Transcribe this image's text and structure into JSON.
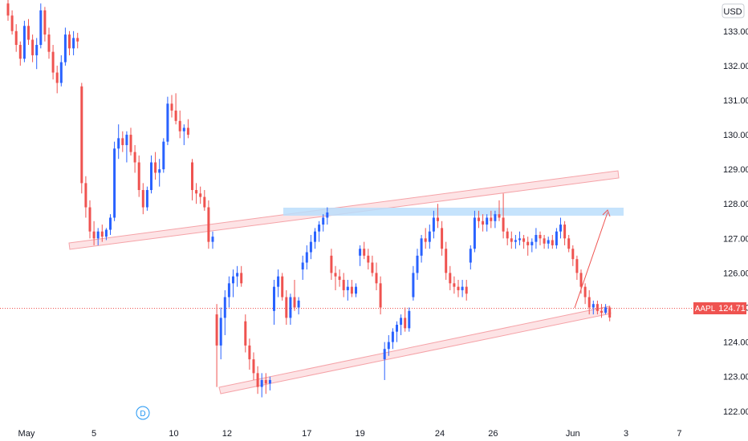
{
  "currency": "USD",
  "colors": {
    "up": "#2962ff",
    "down": "#ef5350",
    "channel": "#f5a3a8",
    "resistance_zone": "#bbdefb",
    "price_line": "#ef5350",
    "axis_text": "#131722"
  },
  "price_tag": {
    "symbol": "AAPL",
    "value": "124.71"
  },
  "event_marker": {
    "label": "D"
  },
  "chart_data": {
    "type": "candlestick",
    "title": "",
    "y_axis": {
      "ticks": [
        "133.00",
        "132.00",
        "131.00",
        "130.00",
        "129.00",
        "128.00",
        "127.00",
        "126.00",
        "125.00",
        "124.00",
        "123.00",
        "122.00"
      ],
      "ylim": [
        121.6,
        133.9
      ]
    },
    "x_axis": {
      "ticks": [
        {
          "label": "May",
          "bar": 4.5
        },
        {
          "label": "5",
          "bar": 21
        },
        {
          "label": "10",
          "bar": 40.5
        },
        {
          "label": "12",
          "bar": 53.5
        },
        {
          "label": "17",
          "bar": 73
        },
        {
          "label": "19",
          "bar": 86
        },
        {
          "label": "24",
          "bar": 105.5
        },
        {
          "label": "26",
          "bar": 118.5
        },
        {
          "label": "Jun",
          "bar": 138
        },
        {
          "label": "3",
          "bar": 151
        },
        {
          "label": "7",
          "bar": 164
        }
      ]
    },
    "last_price": 124.71,
    "candles": [
      [
        133.8,
        133.95,
        133.3,
        133.45
      ],
      [
        133.45,
        133.6,
        132.9,
        133.0
      ],
      [
        133.0,
        133.2,
        132.4,
        132.6
      ],
      [
        132.6,
        132.7,
        132.0,
        132.2
      ],
      [
        132.2,
        133.3,
        132.1,
        133.15
      ],
      [
        133.15,
        133.35,
        132.6,
        132.75
      ],
      [
        132.75,
        132.9,
        132.1,
        132.3
      ],
      [
        132.3,
        132.8,
        131.9,
        132.6
      ],
      [
        132.6,
        133.8,
        132.5,
        133.6
      ],
      [
        133.6,
        133.7,
        132.7,
        132.9
      ],
      [
        132.9,
        133.1,
        132.2,
        132.4
      ],
      [
        132.4,
        132.6,
        131.6,
        131.8
      ],
      [
        131.8,
        132.0,
        131.2,
        131.5
      ],
      [
        131.5,
        132.3,
        131.4,
        132.1
      ],
      [
        132.1,
        133.1,
        132.0,
        132.9
      ],
      [
        132.9,
        133.0,
        132.3,
        132.5
      ],
      [
        132.5,
        133.0,
        132.3,
        132.8
      ],
      [
        132.8,
        132.95,
        132.5,
        132.7
      ],
      [
        131.4,
        131.5,
        128.3,
        128.6
      ],
      [
        128.6,
        128.8,
        127.6,
        127.9
      ],
      [
        127.9,
        128.1,
        127.0,
        127.2
      ],
      [
        127.2,
        127.5,
        126.8,
        127.0
      ],
      [
        127.0,
        127.3,
        126.8,
        127.2
      ],
      [
        127.2,
        127.4,
        126.9,
        127.05
      ],
      [
        127.05,
        127.3,
        126.95,
        127.25
      ],
      [
        127.25,
        127.7,
        127.1,
        127.6
      ],
      [
        127.6,
        129.8,
        127.5,
        129.6
      ],
      [
        129.6,
        130.3,
        129.3,
        129.9
      ],
      [
        129.9,
        130.1,
        129.5,
        129.7
      ],
      [
        129.7,
        130.1,
        129.2,
        130.0
      ],
      [
        130.0,
        130.2,
        129.4,
        129.5
      ],
      [
        129.5,
        129.7,
        128.9,
        129.2
      ],
      [
        129.2,
        129.4,
        128.2,
        128.4
      ],
      [
        128.4,
        128.6,
        127.7,
        127.9
      ],
      [
        127.9,
        128.5,
        127.8,
        128.4
      ],
      [
        128.4,
        129.4,
        128.3,
        129.2
      ],
      [
        129.2,
        129.5,
        128.7,
        128.9
      ],
      [
        128.9,
        129.3,
        128.5,
        129.0
      ],
      [
        129.0,
        129.9,
        128.9,
        129.8
      ],
      [
        129.8,
        131.1,
        129.7,
        130.9
      ],
      [
        130.9,
        131.15,
        130.5,
        130.7
      ],
      [
        130.7,
        131.2,
        130.3,
        130.4
      ],
      [
        130.4,
        130.7,
        129.9,
        130.1
      ],
      [
        130.1,
        130.3,
        129.7,
        130.2
      ],
      [
        130.2,
        130.45,
        129.9,
        130.0
      ],
      [
        129.2,
        129.3,
        128.1,
        128.4
      ],
      [
        128.4,
        128.6,
        128.0,
        128.3
      ],
      [
        128.3,
        128.5,
        128.0,
        128.2
      ],
      [
        128.2,
        128.4,
        127.8,
        127.9
      ],
      [
        127.9,
        128.1,
        126.7,
        126.9
      ],
      [
        126.9,
        127.2,
        126.7,
        127.05
      ],
      [
        124.8,
        125.1,
        122.7,
        123.9
      ],
      [
        123.9,
        125.0,
        123.5,
        124.7
      ],
      [
        124.7,
        125.5,
        124.2,
        125.3
      ],
      [
        125.3,
        125.9,
        125.0,
        125.7
      ],
      [
        125.7,
        126.1,
        125.3,
        125.9
      ],
      [
        125.9,
        126.2,
        125.6,
        126.0
      ],
      [
        126.0,
        126.2,
        125.6,
        125.7
      ],
      [
        124.6,
        124.8,
        123.7,
        123.9
      ],
      [
        123.9,
        124.1,
        123.2,
        123.5
      ],
      [
        123.5,
        123.7,
        122.9,
        123.1
      ],
      [
        123.1,
        123.3,
        122.5,
        122.7
      ],
      [
        122.7,
        123.1,
        122.4,
        122.9
      ],
      [
        122.9,
        123.1,
        122.5,
        122.8
      ],
      [
        122.8,
        123.0,
        122.6,
        122.9
      ],
      [
        124.9,
        125.8,
        124.5,
        125.6
      ],
      [
        125.6,
        126.1,
        125.3,
        125.9
      ],
      [
        125.9,
        126.0,
        125.2,
        125.3
      ],
      [
        125.3,
        125.5,
        124.5,
        124.7
      ],
      [
        124.7,
        125.4,
        124.5,
        125.3
      ],
      [
        125.3,
        125.8,
        124.9,
        125.0
      ],
      [
        125.0,
        125.3,
        124.8,
        125.2
      ],
      [
        126.1,
        126.5,
        125.8,
        126.3
      ],
      [
        126.3,
        126.8,
        126.1,
        126.6
      ],
      [
        126.6,
        127.1,
        126.4,
        126.9
      ],
      [
        126.9,
        127.3,
        126.7,
        127.2
      ],
      [
        127.2,
        127.5,
        126.9,
        127.4
      ],
      [
        127.4,
        127.7,
        127.2,
        127.6
      ],
      [
        127.6,
        127.9,
        127.4,
        127.75
      ],
      [
        126.5,
        126.7,
        125.8,
        126.0
      ],
      [
        126.0,
        126.2,
        125.5,
        125.9
      ],
      [
        125.9,
        126.1,
        125.6,
        125.8
      ],
      [
        125.8,
        126.0,
        125.3,
        125.5
      ],
      [
        125.5,
        125.8,
        125.2,
        125.6
      ],
      [
        125.6,
        125.8,
        125.3,
        125.4
      ],
      [
        125.4,
        125.7,
        125.3,
        125.6
      ],
      [
        126.5,
        126.8,
        126.2,
        126.7
      ],
      [
        126.7,
        126.9,
        126.4,
        126.5
      ],
      [
        126.5,
        126.7,
        126.1,
        126.3
      ],
      [
        126.3,
        126.5,
        125.9,
        126.0
      ],
      [
        126.0,
        126.3,
        125.5,
        125.7
      ],
      [
        125.7,
        125.9,
        124.8,
        125.0
      ],
      [
        123.5,
        124.0,
        122.9,
        123.8
      ],
      [
        123.8,
        124.2,
        123.6,
        124.0
      ],
      [
        124.0,
        124.4,
        123.8,
        124.3
      ],
      [
        124.3,
        124.6,
        124.0,
        124.5
      ],
      [
        124.5,
        124.8,
        124.2,
        124.7
      ],
      [
        124.7,
        125.0,
        124.3,
        124.4
      ],
      [
        124.4,
        125.0,
        124.3,
        124.9
      ],
      [
        125.3,
        126.2,
        125.2,
        126.0
      ],
      [
        126.0,
        126.7,
        125.8,
        126.5
      ],
      [
        126.5,
        127.1,
        126.3,
        127.0
      ],
      [
        127.0,
        127.3,
        126.7,
        126.9
      ],
      [
        126.9,
        127.4,
        126.7,
        127.2
      ],
      [
        127.2,
        127.8,
        127.0,
        127.6
      ],
      [
        127.6,
        128.0,
        127.3,
        127.5
      ],
      [
        127.3,
        127.5,
        126.5,
        126.7
      ],
      [
        126.7,
        126.9,
        125.8,
        126.0
      ],
      [
        126.0,
        126.2,
        125.5,
        125.7
      ],
      [
        125.7,
        125.9,
        125.4,
        125.6
      ],
      [
        125.6,
        125.8,
        125.3,
        125.5
      ],
      [
        125.5,
        125.8,
        125.3,
        125.6
      ],
      [
        125.6,
        125.8,
        125.2,
        125.4
      ],
      [
        126.3,
        126.8,
        126.1,
        126.7
      ],
      [
        126.7,
        127.8,
        126.6,
        127.6
      ],
      [
        127.6,
        127.8,
        127.3,
        127.5
      ],
      [
        127.5,
        127.7,
        127.2,
        127.4
      ],
      [
        127.4,
        127.7,
        127.2,
        127.6
      ],
      [
        127.6,
        127.8,
        127.3,
        127.5
      ],
      [
        127.5,
        127.8,
        127.3,
        127.7
      ],
      [
        127.7,
        128.1,
        127.5,
        127.6
      ],
      [
        127.6,
        128.3,
        127.0,
        127.2
      ],
      [
        127.2,
        127.3,
        126.8,
        127.0
      ],
      [
        127.0,
        127.2,
        126.7,
        126.9
      ],
      [
        126.9,
        127.1,
        126.7,
        126.95
      ],
      [
        126.95,
        127.2,
        126.8,
        127.0
      ],
      [
        127.0,
        127.1,
        126.7,
        126.9
      ],
      [
        126.9,
        127.05,
        126.5,
        126.8
      ],
      [
        126.8,
        127.0,
        126.6,
        126.9
      ],
      [
        126.9,
        127.3,
        126.7,
        127.1
      ],
      [
        127.1,
        127.2,
        126.8,
        127.0
      ],
      [
        127.0,
        127.1,
        126.7,
        126.85
      ],
      [
        126.85,
        127.05,
        126.7,
        126.95
      ],
      [
        126.95,
        127.1,
        126.7,
        126.8
      ],
      [
        126.8,
        127.3,
        126.7,
        127.2
      ],
      [
        127.2,
        127.6,
        127.0,
        127.4
      ],
      [
        127.4,
        127.5,
        126.8,
        127.0
      ],
      [
        127.0,
        127.1,
        126.6,
        126.7
      ],
      [
        126.7,
        126.8,
        126.2,
        126.4
      ],
      [
        126.4,
        126.5,
        125.8,
        126.0
      ],
      [
        126.0,
        126.1,
        125.4,
        125.6
      ],
      [
        125.6,
        125.7,
        125.1,
        125.3
      ],
      [
        125.3,
        125.5,
        124.8,
        125.0
      ],
      [
        125.0,
        125.2,
        124.8,
        125.1
      ],
      [
        125.1,
        125.2,
        124.8,
        124.9
      ],
      [
        124.9,
        125.1,
        124.7,
        124.85
      ],
      [
        124.85,
        125.1,
        124.8,
        125.0
      ],
      [
        125.0,
        125.05,
        124.6,
        124.71
      ]
    ]
  }
}
